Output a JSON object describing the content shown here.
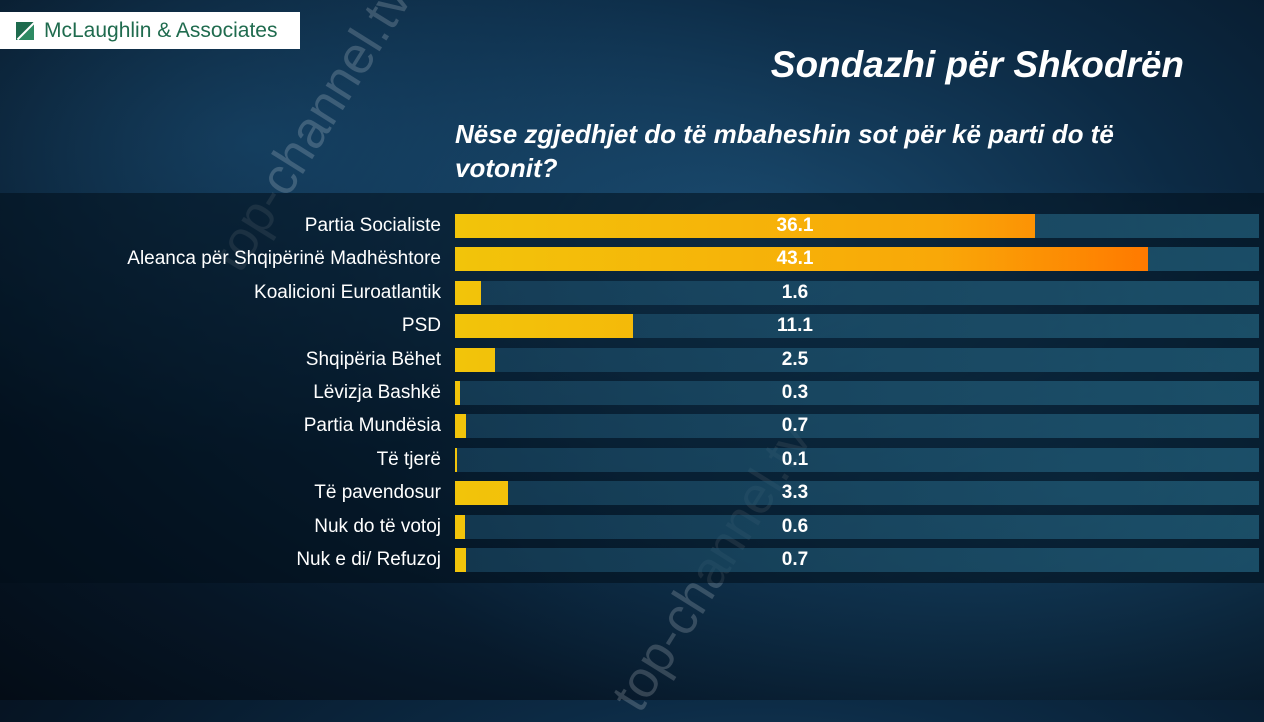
{
  "brand": {
    "logo_text": "McLaughlin & Associates"
  },
  "watermark": "top-channel.tv",
  "chart_data": {
    "type": "bar",
    "orientation": "horizontal",
    "title": "Sondazhi për Shkodrën",
    "subtitle": "Nëse zgjedhjet do të mbaheshin sot për kë parti do të votonit?",
    "categories": [
      "Partia Socialiste",
      "Aleanca për Shqipërinë Madhështore",
      "Koalicioni Euroatlantik",
      "PSD",
      "Shqipëria Bëhet",
      "Lëvizja Bashkë",
      "Partia Mundësia",
      "Të tjerë",
      "Të pavendosur",
      "Nuk do të votoj",
      "Nuk e di/ Refuzoj"
    ],
    "values": [
      36.1,
      43.1,
      1.6,
      11.1,
      2.5,
      0.3,
      0.7,
      0.1,
      3.3,
      0.6,
      0.7
    ],
    "value_labels": [
      "36.1",
      "43.1",
      "1.6",
      "11.1",
      "2.5",
      "0.3",
      "0.7",
      "0.1",
      "3.3",
      "0.6",
      "0.7"
    ],
    "xlim": [
      0,
      50
    ],
    "xlabel": "",
    "ylabel": "",
    "grid": false,
    "legend": "none",
    "colors": {
      "bar_start": "#f2c40a",
      "bar_end": "#ff7a00",
      "label": "#ffffff"
    }
  }
}
